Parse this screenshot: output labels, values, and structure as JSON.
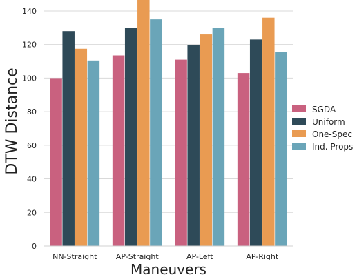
{
  "chart_data": {
    "type": "bar",
    "title": "",
    "xlabel": "Maneuvers",
    "ylabel": "DTW Distance",
    "categories": [
      "NN-Straight",
      "AP-Straight",
      "AP-Left",
      "AP-Right"
    ],
    "series": [
      {
        "name": "SGDA",
        "color": "#c9617f",
        "values": [
          100,
          113.5,
          111,
          103
        ]
      },
      {
        "name": "Uniform",
        "color": "#2e4a58",
        "values": [
          128,
          130,
          119.5,
          123
        ]
      },
      {
        "name": "One-Spec",
        "color": "#e99b52",
        "values": [
          117.5,
          148,
          126,
          136
        ]
      },
      {
        "name": "Ind. Props",
        "color": "#6aa5b8",
        "values": [
          110.5,
          135,
          130,
          115.5
        ]
      }
    ],
    "ylim": [
      0,
      140
    ],
    "yticks": [
      0,
      20,
      40,
      60,
      80,
      100,
      120,
      140
    ],
    "grid": "horizontal",
    "legend": "right"
  }
}
